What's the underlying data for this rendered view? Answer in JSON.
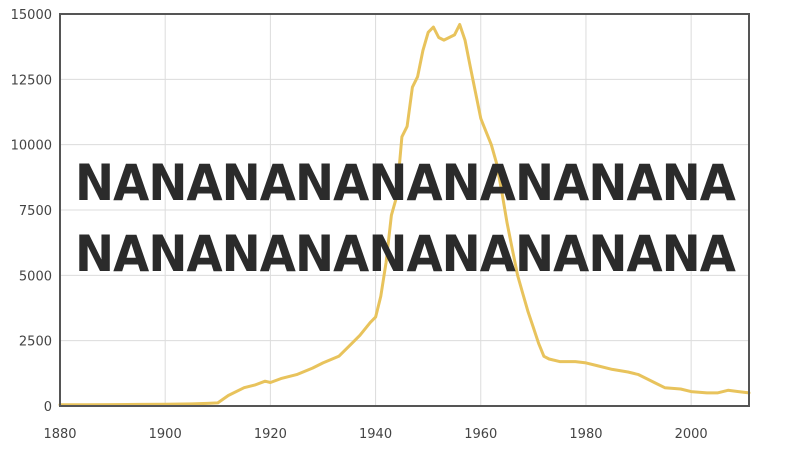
{
  "overlay": {
    "line1": "NANANANANANANANANA",
    "line2": "NANANANANANANANANA"
  },
  "chart_data": {
    "type": "line",
    "title": "",
    "xlabel": "",
    "ylabel": "",
    "xlim": [
      1880,
      2011
    ],
    "ylim": [
      0,
      15000
    ],
    "grid": true,
    "x_ticks": [
      1880,
      1900,
      1920,
      1940,
      1960,
      1980,
      2000
    ],
    "y_ticks": [
      0,
      2500,
      5000,
      7500,
      10000,
      12500,
      15000
    ],
    "colors": {
      "line": "#e8c35c",
      "text": "#2b2b2b",
      "grid": "#dcdcdc",
      "frame": "#555555"
    },
    "series": [
      {
        "x": [
          1880,
          1885,
          1890,
          1895,
          1900,
          1905,
          1908,
          1910,
          1912,
          1915,
          1917,
          1919,
          1920,
          1922,
          1925,
          1928,
          1930,
          1933,
          1935,
          1937,
          1939,
          1940,
          1941,
          1942,
          1943,
          1944,
          1945,
          1946,
          1947,
          1948,
          1949,
          1950,
          1951,
          1952,
          1953,
          1954,
          1955,
          1956,
          1957,
          1958,
          1959,
          1960,
          1961,
          1962,
          1963,
          1964,
          1965,
          1966,
          1967,
          1968,
          1969,
          1970,
          1971,
          1972,
          1973,
          1975,
          1978,
          1980,
          1982,
          1985,
          1988,
          1990,
          1993,
          1995,
          1998,
          2000,
          2003,
          2005,
          2007,
          2009,
          2011
        ],
        "y": [
          50,
          50,
          55,
          60,
          70,
          80,
          100,
          120,
          400,
          700,
          800,
          950,
          900,
          1050,
          1200,
          1450,
          1650,
          1900,
          2300,
          2700,
          3200,
          3400,
          4200,
          5500,
          7300,
          8000,
          10300,
          10700,
          12200,
          12600,
          13600,
          14300,
          14500,
          14100,
          14000,
          14100,
          14200,
          14600,
          14000,
          13000,
          12000,
          11000,
          10500,
          10000,
          9300,
          8200,
          7000,
          6000,
          5000,
          4300,
          3600,
          3000,
          2400,
          1900,
          1800,
          1700,
          1700,
          1650,
          1550,
          1400,
          1300,
          1200,
          900,
          700,
          650,
          550,
          500,
          500,
          600,
          550,
          500
        ]
      }
    ]
  }
}
